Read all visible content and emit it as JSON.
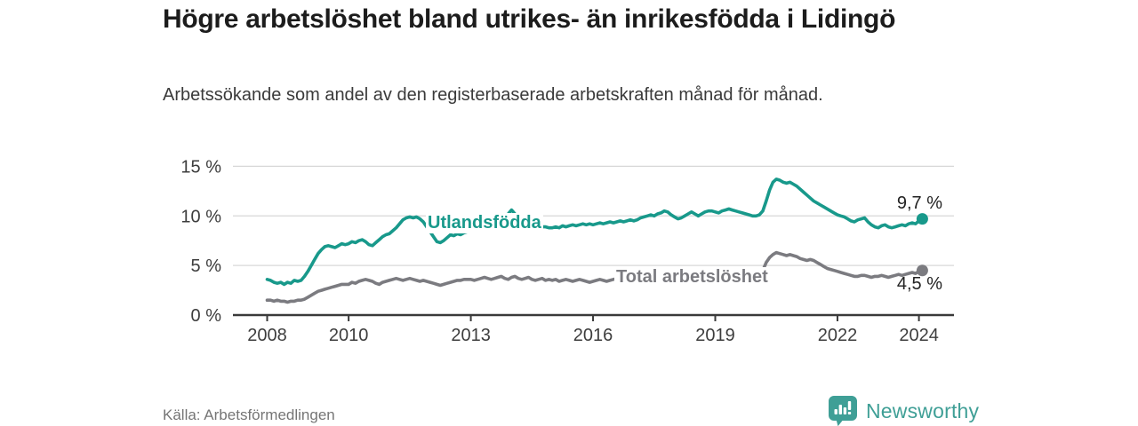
{
  "header": {
    "title": "Högre arbetslöshet bland utrikes- än inrikesfödda i Lidingö",
    "subtitle": "Arbetssökande som andel av den registerbaserade arbetskraften månad för månad."
  },
  "chart_data": {
    "type": "line",
    "x_start_year": 2008,
    "x_step_months": 1,
    "xlim": [
      2007.16,
      2024.86
    ],
    "ylim": [
      0,
      15.8
    ],
    "grid": "horizontal",
    "x_ticks": [
      2008,
      2010,
      2013,
      2016,
      2019,
      2022,
      2024
    ],
    "y_ticks": [
      {
        "value": 0,
        "label": "0 %"
      },
      {
        "value": 5,
        "label": "5 %"
      },
      {
        "value": 10,
        "label": "10 %"
      },
      {
        "value": 15,
        "label": "15 %"
      }
    ],
    "series": [
      {
        "name": "Total arbetslöshet",
        "color": "#7b7b80",
        "end_label": "4,5 %",
        "values": [
          1.5,
          1.5,
          1.4,
          1.5,
          1.4,
          1.4,
          1.3,
          1.4,
          1.4,
          1.5,
          1.5,
          1.6,
          1.8,
          2.0,
          2.2,
          2.4,
          2.5,
          2.6,
          2.7,
          2.8,
          2.9,
          3.0,
          3.1,
          3.1,
          3.1,
          3.3,
          3.2,
          3.4,
          3.5,
          3.6,
          3.5,
          3.4,
          3.2,
          3.1,
          3.3,
          3.4,
          3.5,
          3.6,
          3.7,
          3.6,
          3.5,
          3.6,
          3.7,
          3.6,
          3.5,
          3.4,
          3.5,
          3.4,
          3.3,
          3.2,
          3.1,
          3.0,
          3.1,
          3.2,
          3.3,
          3.4,
          3.5,
          3.5,
          3.6,
          3.6,
          3.6,
          3.5,
          3.6,
          3.7,
          3.8,
          3.7,
          3.6,
          3.7,
          3.8,
          3.9,
          3.7,
          3.6,
          3.8,
          3.9,
          3.7,
          3.6,
          3.7,
          3.8,
          3.6,
          3.5,
          3.6,
          3.7,
          3.5,
          3.6,
          3.5,
          3.6,
          3.4,
          3.5,
          3.6,
          3.5,
          3.4,
          3.5,
          3.6,
          3.5,
          3.4,
          3.3,
          3.4,
          3.5,
          3.6,
          3.5,
          3.4,
          3.5,
          3.6,
          3.7,
          3.6,
          3.5,
          3.4,
          3.5,
          3.5,
          3.6,
          3.7,
          3.6,
          3.5,
          3.6,
          3.7,
          3.8,
          3.7,
          3.6,
          3.5,
          3.6,
          3.5,
          3.4,
          3.5,
          3.6,
          3.5,
          3.4,
          3.5,
          3.6,
          3.5,
          3.4,
          3.5,
          3.6,
          3.6,
          3.7,
          3.6,
          3.7,
          3.8,
          3.7,
          3.6,
          3.7,
          3.8,
          3.9,
          3.8,
          3.9,
          4.0,
          4.1,
          4.5,
          5.3,
          5.8,
          6.1,
          6.3,
          6.2,
          6.1,
          6.0,
          6.1,
          6.0,
          5.9,
          5.7,
          5.6,
          5.5,
          5.6,
          5.5,
          5.3,
          5.1,
          4.9,
          4.7,
          4.6,
          4.5,
          4.4,
          4.3,
          4.2,
          4.1,
          4.0,
          3.9,
          3.9,
          4.0,
          4.0,
          3.9,
          3.8,
          3.9,
          3.9,
          4.0,
          3.9,
          3.8,
          3.9,
          4.0,
          4.1,
          4.0,
          4.1,
          4.2,
          4.3,
          4.2,
          4.4,
          4.5
        ]
      },
      {
        "name": "Utlandsfödda",
        "color": "#18998b",
        "end_label": "9,7 %",
        "values": [
          3.6,
          3.5,
          3.3,
          3.2,
          3.3,
          3.1,
          3.3,
          3.2,
          3.5,
          3.4,
          3.5,
          3.9,
          4.4,
          5.0,
          5.6,
          6.2,
          6.6,
          6.9,
          7.0,
          6.9,
          6.8,
          7.0,
          7.2,
          7.1,
          7.2,
          7.4,
          7.3,
          7.5,
          7.6,
          7.4,
          7.1,
          7.0,
          7.3,
          7.6,
          7.9,
          8.1,
          8.2,
          8.5,
          8.8,
          9.2,
          9.6,
          9.8,
          9.9,
          9.8,
          9.9,
          9.7,
          9.4,
          8.9,
          8.4,
          7.9,
          7.4,
          7.3,
          7.5,
          7.8,
          8.1,
          8.0,
          8.2,
          8.1,
          8.3,
          8.4,
          8.5,
          8.6,
          8.7,
          8.8,
          8.9,
          9.0,
          9.1,
          9.2,
          9.4,
          9.6,
          9.8,
          10.2,
          10.6,
          10.2,
          9.8,
          9.6,
          9.4,
          9.3,
          9.2,
          9.1,
          9.0,
          8.9,
          8.9,
          8.8,
          8.8,
          8.9,
          8.8,
          9.0,
          8.9,
          9.0,
          9.1,
          9.0,
          9.1,
          9.2,
          9.1,
          9.2,
          9.1,
          9.2,
          9.3,
          9.2,
          9.3,
          9.4,
          9.3,
          9.4,
          9.5,
          9.4,
          9.5,
          9.6,
          9.5,
          9.6,
          9.8,
          9.9,
          10.0,
          10.1,
          10.0,
          10.2,
          10.3,
          10.5,
          10.4,
          10.1,
          9.9,
          9.7,
          9.8,
          10.0,
          10.2,
          10.4,
          10.2,
          10.0,
          10.2,
          10.4,
          10.5,
          10.5,
          10.4,
          10.3,
          10.5,
          10.6,
          10.7,
          10.6,
          10.5,
          10.4,
          10.3,
          10.2,
          10.1,
          10.0,
          10.0,
          10.1,
          10.5,
          11.5,
          12.6,
          13.4,
          13.7,
          13.6,
          13.4,
          13.3,
          13.4,
          13.2,
          13.0,
          12.7,
          12.4,
          12.1,
          11.8,
          11.5,
          11.3,
          11.1,
          10.9,
          10.7,
          10.5,
          10.3,
          10.1,
          10.0,
          9.9,
          9.7,
          9.5,
          9.4,
          9.6,
          9.7,
          9.8,
          9.4,
          9.1,
          8.9,
          8.8,
          9.0,
          9.1,
          8.9,
          8.8,
          8.9,
          9.0,
          9.1,
          9.0,
          9.2,
          9.3,
          9.2,
          9.5,
          9.7
        ]
      }
    ]
  },
  "footer": {
    "source": "Källa: Arbetsförmedlingen",
    "brand": "Newsworthy"
  },
  "colors": {
    "accent_teal": "#18998b",
    "series_gray": "#7b7b80",
    "brand_teal": "#3f9f96",
    "grid": "#d8d8d8",
    "axis": "#3a3a3a",
    "tick_text": "#3d3d3d"
  }
}
